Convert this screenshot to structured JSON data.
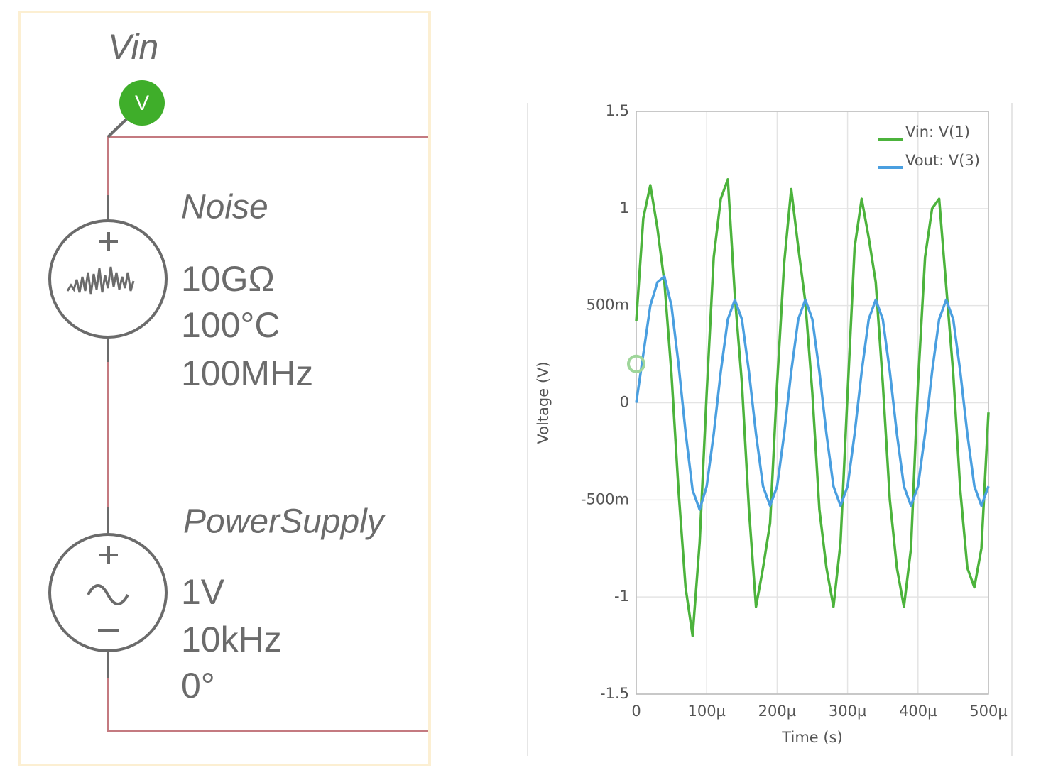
{
  "schematic": {
    "probe_name": "Vin",
    "probe_letter": "V",
    "noise": {
      "name": "Noise",
      "resistance": "10GΩ",
      "temperature": "100°C",
      "bandwidth": "100MHz"
    },
    "supply": {
      "name": "PowerSupply",
      "amplitude": "1V",
      "frequency": "10kHz",
      "phase": "0°"
    }
  },
  "chart_data": {
    "type": "line",
    "xlabel": "Time (s)",
    "ylabel": "Voltage (V)",
    "xlim": [
      0,
      0.0005
    ],
    "ylim": [
      -1.5,
      1.5
    ],
    "xticks": [
      0,
      {
        "value": 0.0001,
        "label": "100µ"
      },
      {
        "value": 0.0002,
        "label": "200µ"
      },
      {
        "value": 0.0003,
        "label": "300µ"
      },
      {
        "value": 0.0004,
        "label": "400µ"
      },
      {
        "value": 0.0005,
        "label": "500µ"
      }
    ],
    "yticks": [
      -1.5,
      -1,
      {
        "value": -0.5,
        "label": "-500m"
      },
      0,
      {
        "value": 0.5,
        "label": "500m"
      },
      1,
      1.5
    ],
    "grid": true,
    "legend": "top-right",
    "x": [
      0,
      1e-05,
      2e-05,
      3e-05,
      4e-05,
      5e-05,
      6e-05,
      7e-05,
      8e-05,
      9e-05,
      0.0001,
      0.00011,
      0.00012,
      0.00013,
      0.00014,
      0.00015,
      0.00016,
      0.00017,
      0.00018,
      0.00019,
      0.0002,
      0.00021,
      0.00022,
      0.00023,
      0.00024,
      0.00025,
      0.00026,
      0.00027,
      0.00028,
      0.00029,
      0.0003,
      0.00031,
      0.00032,
      0.00033,
      0.00034,
      0.00035,
      0.00036,
      0.00037,
      0.00038,
      0.00039,
      0.0004,
      0.00041,
      0.00042,
      0.00043,
      0.00044,
      0.00045,
      0.00046,
      0.00047,
      0.00048,
      0.00049,
      0.0005
    ],
    "series": [
      {
        "name": "Vin: V(1)",
        "color": "#4cb33c",
        "values": [
          0.42,
          0.95,
          1.12,
          0.9,
          0.62,
          0.15,
          -0.45,
          -0.95,
          -1.2,
          -0.72,
          0.05,
          0.75,
          1.05,
          1.15,
          0.55,
          0.1,
          -0.55,
          -1.05,
          -0.85,
          -0.62,
          0.1,
          0.72,
          1.1,
          0.8,
          0.52,
          0.05,
          -0.55,
          -0.85,
          -1.05,
          -0.72,
          0.05,
          0.8,
          1.05,
          0.85,
          0.62,
          0.1,
          -0.5,
          -0.85,
          -1.05,
          -0.75,
          0.1,
          0.75,
          1.0,
          1.05,
          0.6,
          0.15,
          -0.45,
          -0.85,
          -0.95,
          -0.75,
          -0.05
        ]
      },
      {
        "name": "Vout: V(3)",
        "color": "#4a9fe0",
        "values": [
          0,
          0.25,
          0.5,
          0.62,
          0.65,
          0.5,
          0.2,
          -0.15,
          -0.45,
          -0.55,
          -0.43,
          -0.16,
          0.16,
          0.43,
          0.53,
          0.43,
          0.16,
          -0.16,
          -0.43,
          -0.53,
          -0.43,
          -0.16,
          0.16,
          0.43,
          0.53,
          0.43,
          0.16,
          -0.16,
          -0.43,
          -0.53,
          -0.43,
          -0.16,
          0.16,
          0.43,
          0.53,
          0.43,
          0.16,
          -0.16,
          -0.43,
          -0.53,
          -0.43,
          -0.16,
          0.16,
          0.43,
          0.53,
          0.43,
          0.16,
          -0.16,
          -0.43,
          -0.53,
          -0.43
        ]
      }
    ]
  }
}
